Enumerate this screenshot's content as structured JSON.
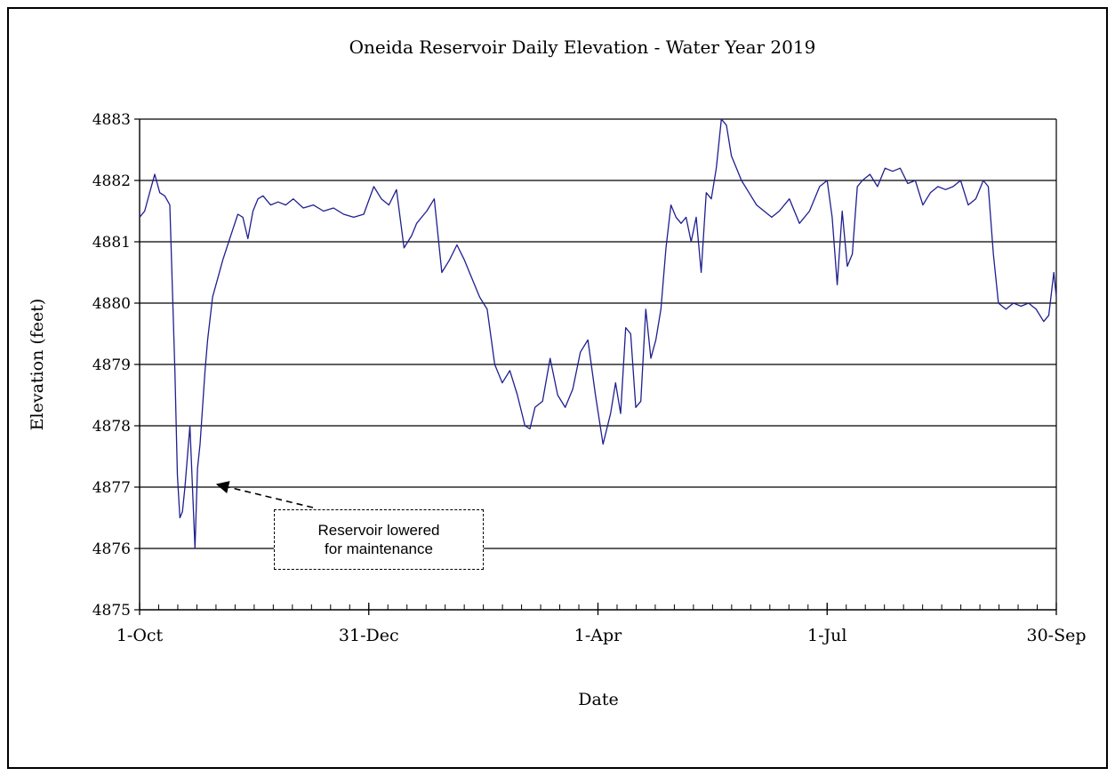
{
  "chart_data": {
    "type": "line",
    "title": "Oneida Reservoir  Daily Elevation  - Water Year  2019",
    "xlabel": "Date",
    "ylabel": "Elevation  (feet)",
    "ylim": [
      4875,
      4883
    ],
    "yticks": [
      4875,
      4876,
      4877,
      4878,
      4879,
      4880,
      4881,
      4882,
      4883
    ],
    "xlim": [
      "2018-10-01",
      "2019-09-30"
    ],
    "xtick_labels": [
      {
        "date": "2018-10-01",
        "label": "1-Oct"
      },
      {
        "date": "2018-12-31",
        "label": "31-Dec"
      },
      {
        "date": "2019-04-01",
        "label": "1-Apr"
      },
      {
        "date": "2019-07-01",
        "label": "1-Jul"
      },
      {
        "date": "2019-09-30",
        "label": "30-Sep"
      }
    ],
    "grid": {
      "horizontal": true,
      "vertical": false
    },
    "line_color": "#1f1f8f",
    "annotation": {
      "text": "Reservoir lowered\nfor maintenance",
      "points_to": {
        "date": "2018-10-29",
        "value": 4877
      }
    },
    "series": [
      {
        "x": [
          "2018-10-01",
          "2018-10-03",
          "2018-10-05",
          "2018-10-07",
          "2018-10-09",
          "2018-10-11",
          "2018-10-13",
          "2018-10-15",
          "2018-10-16",
          "2018-10-17",
          "2018-10-18",
          "2018-10-19",
          "2018-10-21",
          "2018-10-23",
          "2018-10-24",
          "2018-10-25",
          "2018-10-26",
          "2018-10-27",
          "2018-10-28",
          "2018-10-30",
          "2018-11-01",
          "2018-11-03",
          "2018-11-05",
          "2018-11-07",
          "2018-11-09",
          "2018-11-11",
          "2018-11-13",
          "2018-11-15",
          "2018-11-17",
          "2018-11-19",
          "2018-11-22",
          "2018-11-25",
          "2018-11-28",
          "2018-12-01",
          "2018-12-05",
          "2018-12-09",
          "2018-12-13",
          "2018-12-17",
          "2018-12-21",
          "2018-12-25",
          "2018-12-29",
          "2019-01-02",
          "2019-01-05",
          "2019-01-08",
          "2019-01-11",
          "2019-01-14",
          "2019-01-17",
          "2019-01-19",
          "2019-01-21",
          "2019-01-23",
          "2019-01-26",
          "2019-01-29",
          "2019-02-01",
          "2019-02-04",
          "2019-02-07",
          "2019-02-09",
          "2019-02-11",
          "2019-02-13",
          "2019-02-16",
          "2019-02-19",
          "2019-02-22",
          "2019-02-25",
          "2019-02-28",
          "2019-03-03",
          "2019-03-05",
          "2019-03-07",
          "2019-03-10",
          "2019-03-13",
          "2019-03-16",
          "2019-03-19",
          "2019-03-22",
          "2019-03-25",
          "2019-03-28",
          "2019-03-31",
          "2019-04-03",
          "2019-04-06",
          "2019-04-08",
          "2019-04-10",
          "2019-04-12",
          "2019-04-14",
          "2019-04-16",
          "2019-04-18",
          "2019-04-20",
          "2019-04-22",
          "2019-04-24",
          "2019-04-26",
          "2019-04-28",
          "2019-04-30",
          "2019-05-02",
          "2019-05-04",
          "2019-05-06",
          "2019-05-08",
          "2019-05-10",
          "2019-05-12",
          "2019-05-14",
          "2019-05-16",
          "2019-05-18",
          "2019-05-20",
          "2019-05-22",
          "2019-05-24",
          "2019-05-26",
          "2019-05-28",
          "2019-05-31",
          "2019-06-03",
          "2019-06-06",
          "2019-06-09",
          "2019-06-12",
          "2019-06-16",
          "2019-06-20",
          "2019-06-24",
          "2019-06-28",
          "2019-07-01",
          "2019-07-03",
          "2019-07-05",
          "2019-07-07",
          "2019-07-09",
          "2019-07-11",
          "2019-07-13",
          "2019-07-15",
          "2019-07-18",
          "2019-07-21",
          "2019-07-24",
          "2019-07-27",
          "2019-07-30",
          "2019-08-02",
          "2019-08-05",
          "2019-08-08",
          "2019-08-11",
          "2019-08-14",
          "2019-08-17",
          "2019-08-20",
          "2019-08-23",
          "2019-08-26",
          "2019-08-29",
          "2019-09-01",
          "2019-09-03",
          "2019-09-05",
          "2019-09-07",
          "2019-09-10",
          "2019-09-13",
          "2019-09-16",
          "2019-09-19",
          "2019-09-22",
          "2019-09-25",
          "2019-09-27",
          "2019-09-29",
          "2019-09-30"
        ],
        "values": [
          4881.4,
          4881.5,
          4881.8,
          4882.1,
          4881.8,
          4881.75,
          4881.6,
          4878.9,
          4877.2,
          4876.5,
          4876.6,
          4877.0,
          4878.0,
          4876.0,
          4877.3,
          4877.7,
          4878.3,
          4878.9,
          4879.4,
          4880.1,
          4880.4,
          4880.7,
          4880.95,
          4881.2,
          4881.45,
          4881.4,
          4881.05,
          4881.5,
          4881.7,
          4881.75,
          4881.6,
          4881.65,
          4881.6,
          4881.7,
          4881.55,
          4881.6,
          4881.5,
          4881.55,
          4881.45,
          4881.4,
          4881.45,
          4881.9,
          4881.7,
          4881.6,
          4881.85,
          4880.9,
          4881.1,
          4881.3,
          4881.4,
          4881.5,
          4881.7,
          4880.5,
          4880.7,
          4880.95,
          4880.7,
          4880.5,
          4880.3,
          4880.1,
          4879.9,
          4879.0,
          4878.7,
          4878.9,
          4878.5,
          4878.0,
          4877.95,
          4878.3,
          4878.4,
          4879.1,
          4878.5,
          4878.3,
          4878.6,
          4879.2,
          4879.4,
          4878.5,
          4877.7,
          4878.2,
          4878.7,
          4878.2,
          4879.6,
          4879.5,
          4878.3,
          4878.4,
          4879.9,
          4879.1,
          4879.4,
          4879.9,
          4880.9,
          4881.6,
          4881.4,
          4881.3,
          4881.4,
          4881.0,
          4881.4,
          4880.5,
          4881.8,
          4881.7,
          4882.2,
          4883.0,
          4882.9,
          4882.4,
          4882.2,
          4882.0,
          4881.8,
          4881.6,
          4881.5,
          4881.4,
          4881.5,
          4881.7,
          4881.3,
          4881.5,
          4881.9,
          4882.0,
          4881.4,
          4880.3,
          4881.5,
          4880.6,
          4880.8,
          4881.9,
          4882.0,
          4882.1,
          4881.9,
          4882.2,
          4882.15,
          4882.2,
          4881.95,
          4882.0,
          4881.6,
          4881.8,
          4881.9,
          4881.85,
          4881.9,
          4882.0,
          4881.6,
          4881.7,
          4882.0,
          4881.9,
          4880.8,
          4880.0,
          4879.9,
          4880.0,
          4879.95,
          4880.0,
          4879.9,
          4879.7,
          4879.8,
          4880.5,
          4880.1
        ]
      }
    ]
  }
}
